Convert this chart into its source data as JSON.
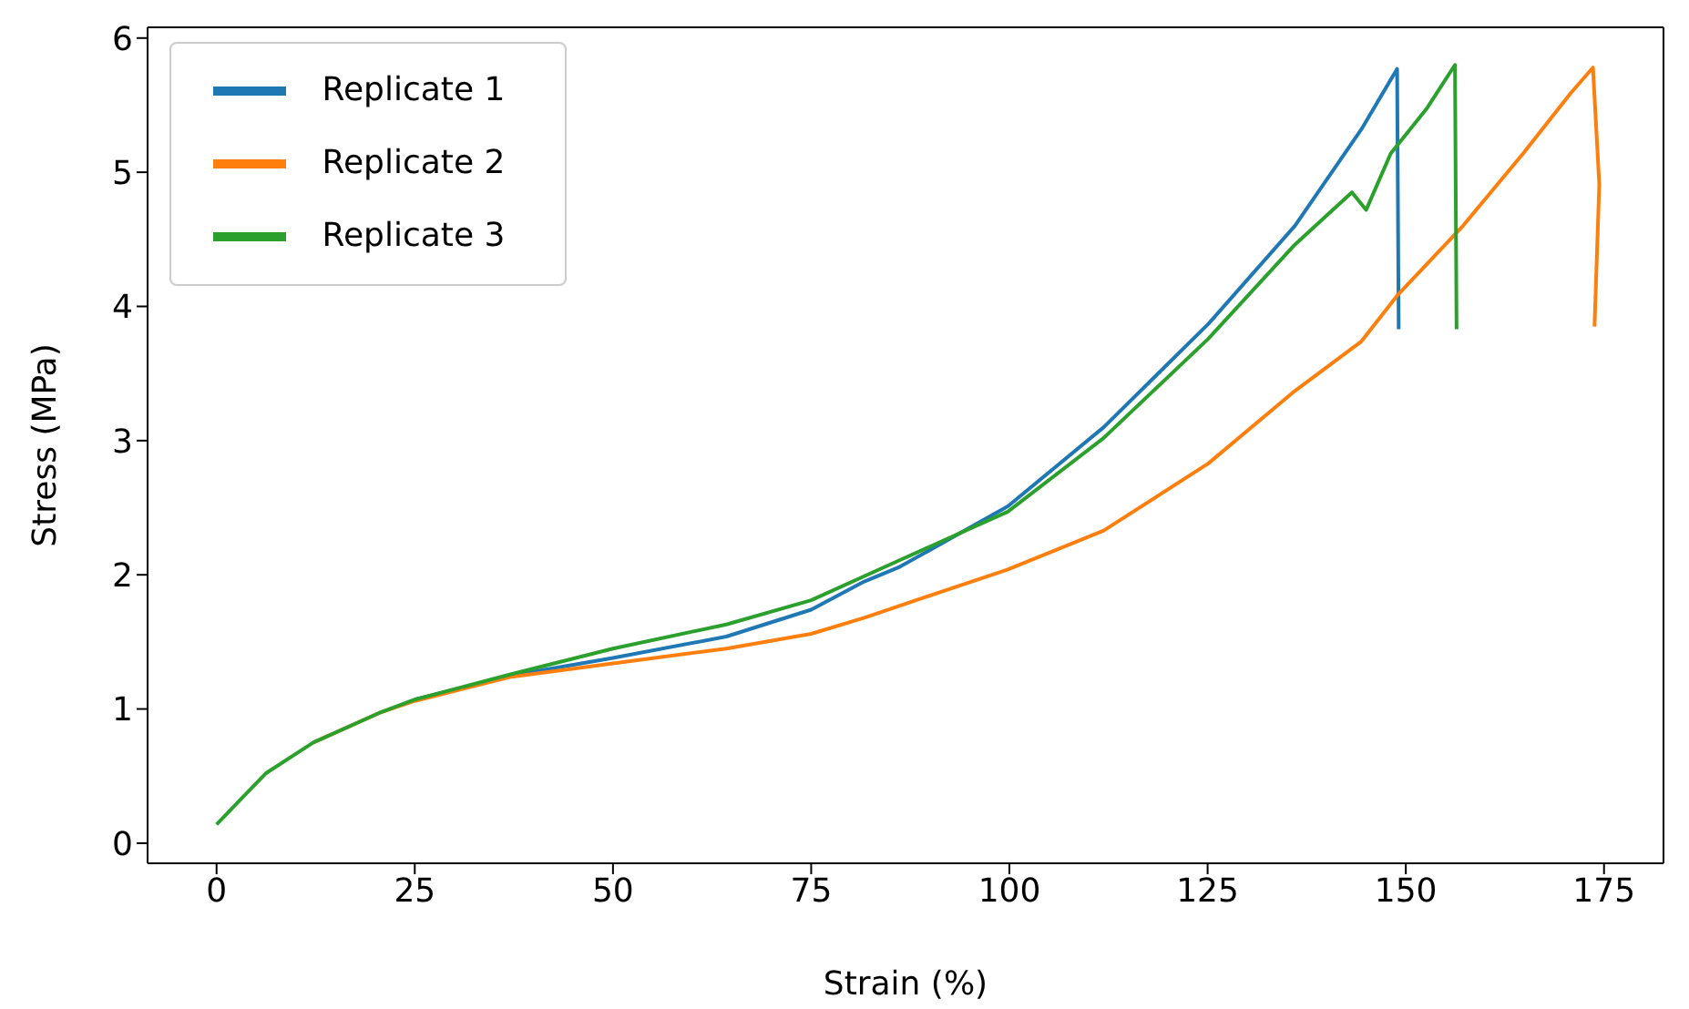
{
  "chart_data": {
    "type": "line",
    "xlabel": "Strain (%)",
    "ylabel": "Stress (MPa)",
    "xlim": [
      -8.7,
      182.5
    ],
    "xticks": [
      0,
      25,
      50,
      75,
      100,
      125,
      150,
      175
    ],
    "ylim": [
      -0.15,
      6.08
    ],
    "yticks": [
      0,
      1,
      2,
      3,
      4,
      5,
      6
    ],
    "grid": false,
    "legend": "top left",
    "marker": "none",
    "line_style": "solid",
    "series": [
      {
        "name": "Replicate 1",
        "color": "#1f77b4",
        "x": [
          25,
          37.2,
          50,
          64.3,
          75,
          81.7,
          86.2,
          99.8,
          111.9,
          125.1,
          136,
          144.4,
          148.9,
          149.1
        ],
        "values": [
          1.07,
          1.25,
          1.38,
          1.54,
          1.74,
          1.95,
          2.06,
          2.51,
          3.1,
          3.87,
          4.6,
          5.32,
          5.77,
          3.83
        ]
      },
      {
        "name": "Replicate 2",
        "color": "#ff7f0e",
        "x": [
          12.2,
          20.5,
          25,
          37.2,
          50,
          64.3,
          75,
          81.7,
          86.2,
          99.8,
          111.9,
          125.1,
          136,
          144.4,
          148.9,
          157.2,
          164.8,
          170.8,
          173.6,
          174.4,
          173.8
        ],
        "values": [
          0.75,
          0.97,
          1.06,
          1.24,
          1.34,
          1.45,
          1.56,
          1.68,
          1.77,
          2.04,
          2.33,
          2.83,
          3.37,
          3.74,
          4.08,
          4.6,
          5.14,
          5.59,
          5.78,
          4.91,
          3.85
        ]
      },
      {
        "name": "Replicate 3",
        "color": "#2ca02c",
        "x": [
          0,
          6.2,
          12.2,
          20.5,
          25,
          37.2,
          50,
          64.3,
          75,
          86.2,
          99.8,
          111.9,
          125.1,
          136,
          143.2,
          145,
          148.1,
          152.7,
          156.2,
          156.4
        ],
        "values": [
          0.14,
          0.52,
          0.75,
          0.97,
          1.07,
          1.26,
          1.45,
          1.63,
          1.81,
          2.11,
          2.47,
          3.02,
          3.76,
          4.46,
          4.85,
          4.72,
          5.14,
          5.48,
          5.8,
          3.83
        ]
      }
    ]
  }
}
